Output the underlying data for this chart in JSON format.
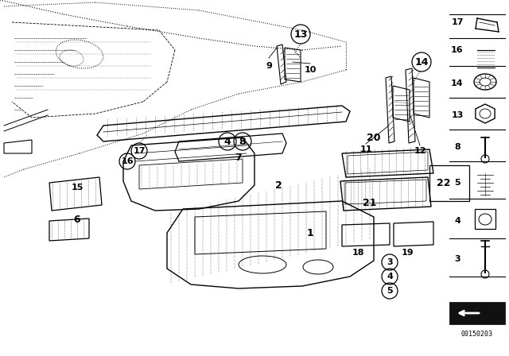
{
  "bg_color": "#ffffff",
  "line_color": "#000000",
  "diagram_code": "00150203",
  "gray_fill": "#e8e8e8",
  "dot_fill": "#cccccc"
}
